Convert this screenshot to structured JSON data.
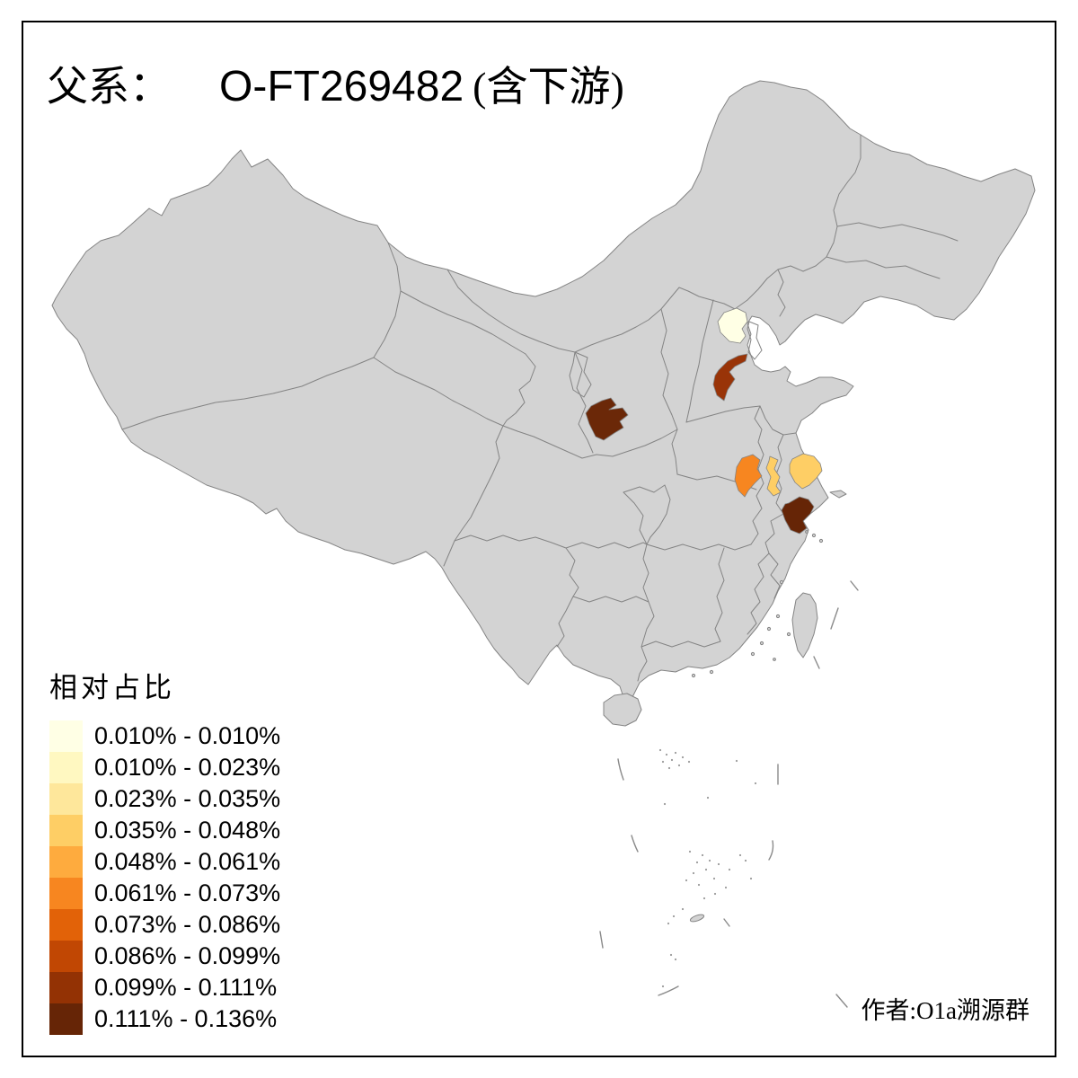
{
  "title": {
    "family_label": "父系：",
    "haplogroup": "O-FT269482",
    "suffix": "(含下游)"
  },
  "legend": {
    "title": "相对占比",
    "classes": [
      {
        "range": "0.010% - 0.010%",
        "color": "#FFFFE5"
      },
      {
        "range": "0.010% - 0.023%",
        "color": "#FFF8C1"
      },
      {
        "range": "0.023% - 0.035%",
        "color": "#FEE79B"
      },
      {
        "range": "0.035% - 0.048%",
        "color": "#FECE65"
      },
      {
        "range": "0.048% - 0.061%",
        "color": "#FEAB3E"
      },
      {
        "range": "0.061% - 0.073%",
        "color": "#F78620"
      },
      {
        "range": "0.073% - 0.086%",
        "color": "#E26208"
      },
      {
        "range": "0.086% - 0.099%",
        "color": "#C14703"
      },
      {
        "range": "0.099% - 0.111%",
        "color": "#933204"
      },
      {
        "range": "0.111% - 0.136%",
        "color": "#662506"
      }
    ]
  },
  "author": "作者:O1a溯源群",
  "map": {
    "province_fill": "#D3D3D3",
    "border_color": "#848484",
    "background": "#FFFFFF",
    "frame_color": "#000000",
    "regions": [
      {
        "id": "region-beijing",
        "bin": 1,
        "range": "0.010% - 0.010%",
        "color": "#FFFFE5"
      },
      {
        "id": "region-hebei",
        "bin": 9,
        "range": "0.099% - 0.111%",
        "color": "#993408"
      },
      {
        "id": "region-shaanxi",
        "bin": 10,
        "range": "0.111% - 0.136%",
        "color": "#6B2808"
      },
      {
        "id": "region-anhui",
        "bin": 6,
        "range": "0.061% - 0.073%",
        "color": "#F78620"
      },
      {
        "id": "region-jiangsu-west",
        "bin": 4,
        "range": "0.035% - 0.048%",
        "color": "#FECE65"
      },
      {
        "id": "region-jiangsu-east",
        "bin": 4,
        "range": "0.035% - 0.048%",
        "color": "#FECE65"
      },
      {
        "id": "region-zhejiang",
        "bin": 10,
        "range": "0.111% - 0.136%",
        "color": "#662506"
      }
    ]
  },
  "chart_data": {
    "type": "choropleth",
    "title": "父系： O-FT269482 (含下游)",
    "legend_title": "相对占比",
    "legend_position": "bottom-left",
    "bins": [
      "0.010% - 0.010%",
      "0.010% - 0.023%",
      "0.023% - 0.035%",
      "0.035% - 0.048%",
      "0.048% - 0.061%",
      "0.061% - 0.073%",
      "0.073% - 0.086%",
      "0.086% - 0.099%",
      "0.099% - 0.111%",
      "0.111% - 0.136%"
    ],
    "highlighted_regions": [
      {
        "id": "region-beijing",
        "bin_range": "0.010% - 0.010%"
      },
      {
        "id": "region-hebei",
        "bin_range": "0.099% - 0.111%"
      },
      {
        "id": "region-shaanxi",
        "bin_range": "0.111% - 0.136%"
      },
      {
        "id": "region-anhui",
        "bin_range": "0.061% - 0.073%"
      },
      {
        "id": "region-jiangsu-west",
        "bin_range": "0.035% - 0.048%"
      },
      {
        "id": "region-jiangsu-east",
        "bin_range": "0.035% - 0.048%"
      },
      {
        "id": "region-zhejiang",
        "bin_range": "0.111% - 0.136%"
      }
    ]
  }
}
